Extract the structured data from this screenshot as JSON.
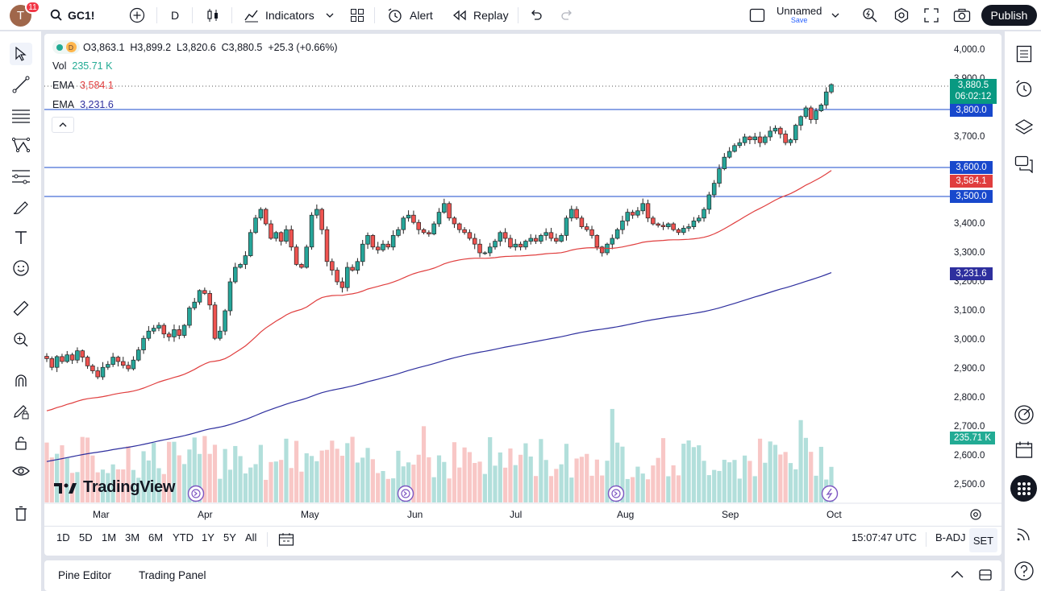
{
  "topbar": {
    "avatar_letter": "T",
    "notification_count": "11",
    "symbol": "GC1!",
    "interval": "D",
    "indicators_label": "Indicators",
    "alert_label": "Alert",
    "replay_label": "Replay",
    "layout_name": "Unnamed",
    "layout_status": "Save",
    "publish_label": "Publish"
  },
  "legend": {
    "interval_badge": "D",
    "ohlc": "O3,863.1  H3,899.2  L3,820.6  C3,880.5  +25.3 (+0.66%)",
    "vol_label": "Vol",
    "vol_value": "235.71 K",
    "ema1_label": "EMA",
    "ema1_value": "3,584.1",
    "ema2_label": "EMA",
    "ema2_value": "3,231.6"
  },
  "price_axis": {
    "ticks": [
      "4,000.0",
      "3,900.0",
      "3,700.0",
      "3,400.0",
      "3,300.0",
      "3,200.0",
      "3,100.0",
      "3,000.0",
      "2,900.0",
      "2,800.0",
      "2,700.0",
      "2,600.0",
      "2,500.0"
    ],
    "last_price": "3,880.5",
    "countdown": "06:02:12",
    "level_3800": "3,800.0",
    "level_3600": "3,600.0",
    "ema1_tag": "3,584.1",
    "level_3500": "3,500.0",
    "ema2_tag": "3,231.6",
    "volume_tag": "235.71 K"
  },
  "time_axis": {
    "months": [
      "Mar",
      "Apr",
      "May",
      "Jun",
      "Jul",
      "Aug",
      "Sep",
      "Oct"
    ]
  },
  "watermark": "TradingView",
  "bottom_toolbar": {
    "ranges": [
      "1D",
      "5D",
      "1M",
      "3M",
      "6M",
      "YTD",
      "1Y",
      "5Y",
      "All"
    ],
    "clock": "15:07:47 UTC",
    "adjustment": "B-ADJ",
    "session": "SET"
  },
  "footer": {
    "pine_editor": "Pine Editor",
    "trading_panel": "Trading Panel"
  },
  "colors": {
    "up": "#26a69a",
    "down": "#ef5350",
    "ema1": "#e03e3e",
    "ema2": "#2e2f9e",
    "hline": "#1848cc",
    "last_price": "#089981"
  },
  "chart_data": {
    "type": "candlestick",
    "symbol": "GC1!",
    "interval": "D",
    "ylim": [
      2460,
      4040
    ],
    "horizontal_levels": [
      3800,
      3600,
      3500
    ],
    "ema_fast_last": 3584.1,
    "ema_slow_last": 3231.6,
    "closes": [
      2935,
      2905,
      2942,
      2925,
      2948,
      2930,
      2962,
      2940,
      2910,
      2893,
      2872,
      2905,
      2915,
      2940,
      2925,
      2912,
      2900,
      2930,
      2965,
      3005,
      3030,
      3040,
      3050,
      3020,
      3010,
      3035,
      3015,
      3050,
      3110,
      3130,
      3170,
      3160,
      3120,
      3005,
      3030,
      3100,
      3200,
      3250,
      3260,
      3290,
      3370,
      3420,
      3450,
      3400,
      3350,
      3370,
      3340,
      3380,
      3320,
      3260,
      3250,
      3320,
      3430,
      3450,
      3380,
      3270,
      3240,
      3200,
      3180,
      3250,
      3240,
      3270,
      3330,
      3360,
      3320,
      3310,
      3330,
      3320,
      3360,
      3380,
      3420,
      3430,
      3405,
      3380,
      3370,
      3365,
      3400,
      3440,
      3470,
      3420,
      3400,
      3380,
      3370,
      3350,
      3330,
      3300,
      3300,
      3320,
      3340,
      3370,
      3350,
      3320,
      3330,
      3320,
      3340,
      3350,
      3340,
      3360,
      3370,
      3350,
      3340,
      3360,
      3420,
      3450,
      3420,
      3390,
      3380,
      3360,
      3320,
      3300,
      3330,
      3350,
      3380,
      3410,
      3440,
      3430,
      3445,
      3470,
      3420,
      3400,
      3395,
      3390,
      3400,
      3380,
      3370,
      3385,
      3390,
      3410,
      3420,
      3450,
      3500,
      3540,
      3590,
      3630,
      3650,
      3670,
      3680,
      3700,
      3690,
      3700,
      3680,
      3700,
      3720,
      3730,
      3710,
      3680,
      3690,
      3740,
      3770,
      3800,
      3760,
      3790,
      3810,
      3855,
      3880.5
    ]
  }
}
